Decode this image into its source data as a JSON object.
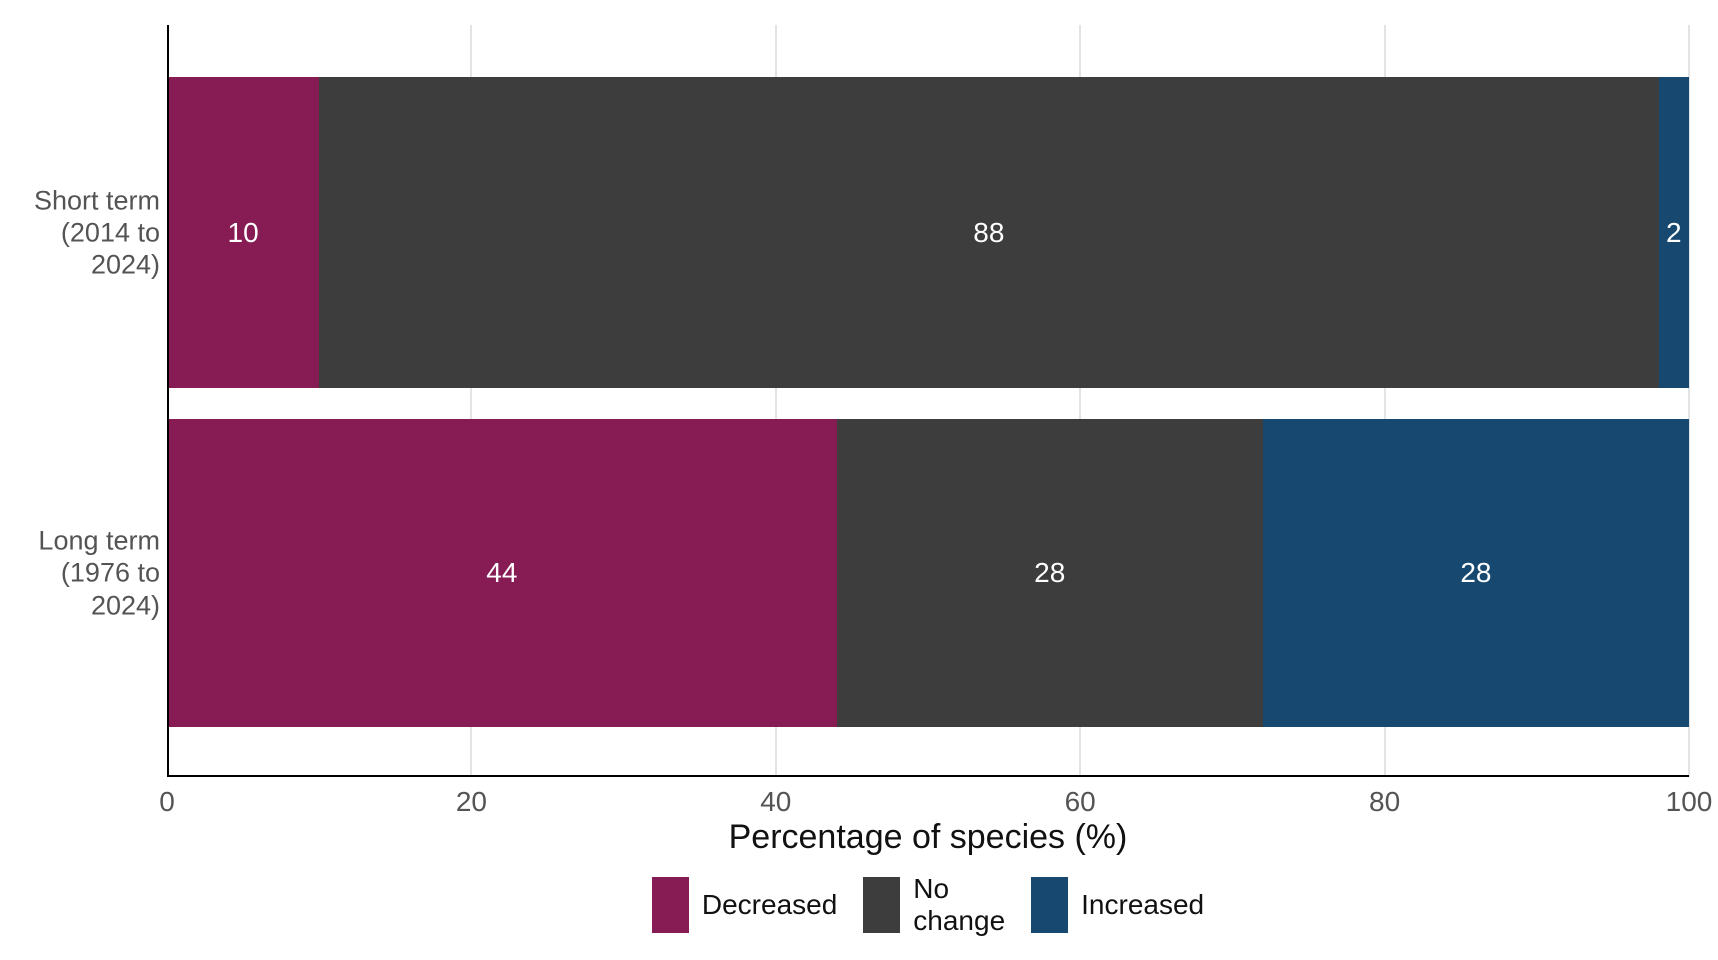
{
  "chart_data": {
    "type": "bar",
    "orientation": "horizontal",
    "stacked": true,
    "title": "",
    "xlabel": "Percentage of species (%)",
    "ylabel": "",
    "xlim": [
      0,
      100
    ],
    "xticks": [
      0,
      20,
      40,
      60,
      80,
      100
    ],
    "grid": true,
    "legend_position": "bottom",
    "categories": [
      "Short term\n(2014 to\n2024)",
      "Long term\n(1976 to\n2024)"
    ],
    "series": [
      {
        "name": "Decreased",
        "color": "#871B54",
        "values": [
          10,
          44
        ]
      },
      {
        "name": "No change",
        "color": "#3D3D3D",
        "values": [
          88,
          28
        ]
      },
      {
        "name": "Increased",
        "color": "#17486F",
        "values": [
          2,
          28
        ]
      }
    ],
    "bar_value_labels": [
      [
        10,
        88,
        2
      ],
      [
        44,
        28,
        28
      ]
    ],
    "bar_value_label_color": "#FFFFFF"
  },
  "style_colors": {
    "axis_line": "#000000",
    "gridline": "#E3E3E3",
    "axis_text": "#545454",
    "title_text": "#111111",
    "legend_text": "#111111",
    "background": "#FFFFFF"
  }
}
